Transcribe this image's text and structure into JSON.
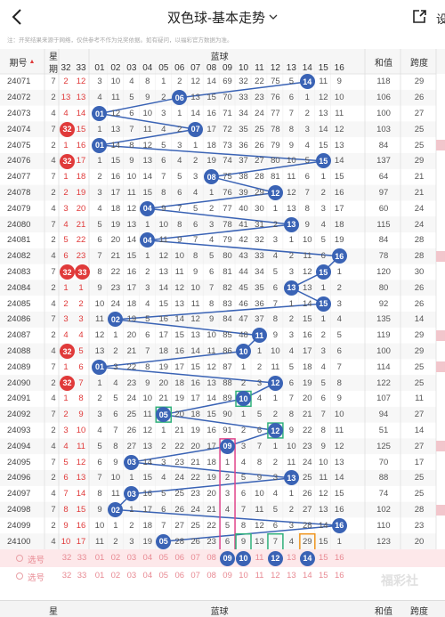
{
  "nav": {
    "title": "双色球-基本走势",
    "settings": "设"
  },
  "notice": "注：开奖结果来源于网络，仅供参考不作为兑奖依据。如有疑问，以福彩官方数据为准。",
  "header": {
    "period": "期号",
    "weekday_top": "星",
    "weekday_bottom": "期",
    "red_cols": [
      "32",
      "33"
    ],
    "blue_label": "蓝球",
    "blue_cols": [
      "01",
      "02",
      "03",
      "04",
      "05",
      "06",
      "07",
      "08",
      "09",
      "10",
      "11",
      "12",
      "13",
      "14",
      "15",
      "16"
    ],
    "sum": "和值",
    "span": "跨度"
  },
  "rows": [
    {
      "p": "24071",
      "w": "7",
      "a": "2",
      "b": "12",
      "ball": 14,
      "cells": [
        "3",
        "10",
        "4",
        "8",
        "1",
        "2",
        "12",
        "14",
        "69",
        "32",
        "22",
        "75",
        "5",
        "",
        "11",
        "9"
      ],
      "sum": "118",
      "span": "29"
    },
    {
      "p": "24072",
      "w": "2",
      "a": "13",
      "b": "13",
      "ball": 6,
      "cells": [
        "4",
        "11",
        "5",
        "9",
        "2",
        "",
        "13",
        "15",
        "70",
        "33",
        "23",
        "76",
        "6",
        "1",
        "12",
        "10"
      ],
      "sum": "106",
      "span": "26"
    },
    {
      "p": "24073",
      "w": "4",
      "a": "4",
      "b": "14",
      "ball": 1,
      "cells": [
        "",
        "12",
        "6",
        "10",
        "3",
        "1",
        "14",
        "16",
        "71",
        "34",
        "24",
        "77",
        "7",
        "2",
        "13",
        "11"
      ],
      "sum": "100",
      "span": "27"
    },
    {
      "p": "24074",
      "w": "7",
      "a": "r32",
      "b": "15",
      "ball": 7,
      "cells": [
        "1",
        "13",
        "7",
        "11",
        "4",
        "2",
        "",
        "17",
        "72",
        "35",
        "25",
        "78",
        "8",
        "3",
        "14",
        "12"
      ],
      "sum": "103",
      "span": "25"
    },
    {
      "p": "24075",
      "w": "2",
      "a": "1",
      "b": "16",
      "ball": 1,
      "cells": [
        "",
        "14",
        "8",
        "12",
        "5",
        "3",
        "1",
        "18",
        "73",
        "36",
        "26",
        "79",
        "9",
        "4",
        "15",
        "13"
      ],
      "sum": "84",
      "span": "25"
    },
    {
      "p": "24076",
      "w": "4",
      "a": "r32",
      "b": "17",
      "ball": 15,
      "cells": [
        "1",
        "15",
        "9",
        "13",
        "6",
        "4",
        "2",
        "19",
        "74",
        "37",
        "27",
        "80",
        "10",
        "5",
        "",
        "14"
      ],
      "sum": "137",
      "span": "29"
    },
    {
      "p": "24077",
      "w": "7",
      "a": "1",
      "b": "18",
      "ball": 8,
      "cells": [
        "2",
        "16",
        "10",
        "14",
        "7",
        "5",
        "3",
        "",
        "75",
        "38",
        "28",
        "81",
        "11",
        "6",
        "1",
        "15"
      ],
      "sum": "64",
      "span": "21"
    },
    {
      "p": "24078",
      "w": "2",
      "a": "2",
      "b": "19",
      "ball": 12,
      "cells": [
        "3",
        "17",
        "11",
        "15",
        "8",
        "6",
        "4",
        "1",
        "76",
        "39",
        "29",
        "",
        "12",
        "7",
        "2",
        "16"
      ],
      "sum": "97",
      "span": "21"
    },
    {
      "p": "24079",
      "w": "4",
      "a": "3",
      "b": "20",
      "ball": 4,
      "cells": [
        "4",
        "18",
        "12",
        "",
        "9",
        "7",
        "5",
        "2",
        "77",
        "40",
        "30",
        "1",
        "13",
        "8",
        "3",
        "17"
      ],
      "sum": "60",
      "span": "24"
    },
    {
      "p": "24080",
      "w": "7",
      "a": "4",
      "b": "21",
      "ball": 13,
      "cells": [
        "5",
        "19",
        "13",
        "1",
        "10",
        "8",
        "6",
        "3",
        "78",
        "41",
        "31",
        "2",
        "",
        "9",
        "4",
        "18"
      ],
      "sum": "115",
      "span": "24"
    },
    {
      "p": "24081",
      "w": "2",
      "a": "5",
      "b": "22",
      "ball": 4,
      "cells": [
        "6",
        "20",
        "14",
        "",
        "11",
        "9",
        "7",
        "4",
        "79",
        "42",
        "32",
        "3",
        "1",
        "10",
        "5",
        "19"
      ],
      "sum": "84",
      "span": "28"
    },
    {
      "p": "24082",
      "w": "4",
      "a": "6",
      "b": "23",
      "ball": 16,
      "cells": [
        "7",
        "21",
        "15",
        "1",
        "12",
        "10",
        "8",
        "5",
        "80",
        "43",
        "33",
        "4",
        "2",
        "11",
        "6",
        ""
      ],
      "sum": "78",
      "span": "28"
    },
    {
      "p": "24083",
      "w": "7",
      "a": "r32",
      "b": "r33",
      "ball": 15,
      "cells": [
        "8",
        "22",
        "16",
        "2",
        "13",
        "11",
        "9",
        "6",
        "81",
        "44",
        "34",
        "5",
        "3",
        "12",
        "",
        "1"
      ],
      "sum": "120",
      "span": "30"
    },
    {
      "p": "24084",
      "w": "2",
      "a": "1",
      "b": "1",
      "ball": 13,
      "cells": [
        "9",
        "23",
        "17",
        "3",
        "14",
        "12",
        "10",
        "7",
        "82",
        "45",
        "35",
        "6",
        "",
        "13",
        "1",
        "2"
      ],
      "sum": "80",
      "span": "26"
    },
    {
      "p": "24085",
      "w": "4",
      "a": "2",
      "b": "2",
      "ball": 15,
      "cells": [
        "10",
        "24",
        "18",
        "4",
        "15",
        "13",
        "11",
        "8",
        "83",
        "46",
        "36",
        "7",
        "1",
        "14",
        "",
        "3"
      ],
      "sum": "92",
      "span": "26"
    },
    {
      "p": "24086",
      "w": "7",
      "a": "3",
      "b": "3",
      "ball": 2,
      "cells": [
        "11",
        "",
        "19",
        "5",
        "16",
        "14",
        "12",
        "9",
        "84",
        "47",
        "37",
        "8",
        "2",
        "15",
        "1",
        "4"
      ],
      "sum": "135",
      "span": "14"
    },
    {
      "p": "24087",
      "w": "2",
      "a": "4",
      "b": "4",
      "ball": 11,
      "cells": [
        "12",
        "1",
        "20",
        "6",
        "17",
        "15",
        "13",
        "10",
        "85",
        "48",
        "",
        "9",
        "3",
        "16",
        "2",
        "5"
      ],
      "sum": "119",
      "span": "29"
    },
    {
      "p": "24088",
      "w": "4",
      "a": "r32",
      "b": "5",
      "ball": 10,
      "cells": [
        "13",
        "2",
        "21",
        "7",
        "18",
        "16",
        "14",
        "11",
        "86",
        "",
        "1",
        "10",
        "4",
        "17",
        "3",
        "6"
      ],
      "sum": "100",
      "span": "29"
    },
    {
      "p": "24089",
      "w": "7",
      "a": "1",
      "b": "6",
      "ball": 1,
      "cells": [
        "",
        "3",
        "22",
        "8",
        "19",
        "17",
        "15",
        "12",
        "87",
        "1",
        "2",
        "11",
        "5",
        "18",
        "4",
        "7"
      ],
      "sum": "114",
      "span": "25"
    },
    {
      "p": "24090",
      "w": "2",
      "a": "r32",
      "b": "7",
      "ball": 12,
      "cells": [
        "1",
        "4",
        "23",
        "9",
        "20",
        "18",
        "16",
        "13",
        "88",
        "2",
        "3",
        "",
        "6",
        "19",
        "5",
        "8"
      ],
      "sum": "122",
      "span": "25"
    },
    {
      "p": "24091",
      "w": "4",
      "a": "1",
      "b": "8",
      "ball": 10,
      "cells": [
        "2",
        "5",
        "24",
        "10",
        "21",
        "19",
        "17",
        "14",
        "89",
        "",
        "4",
        "1",
        "7",
        "20",
        "6",
        "9"
      ],
      "sum": "107",
      "span": "11"
    },
    {
      "p": "24092",
      "w": "7",
      "a": "2",
      "b": "9",
      "ball": 5,
      "cells": [
        "3",
        "6",
        "25",
        "11",
        "",
        "20",
        "18",
        "15",
        "90",
        "1",
        "5",
        "2",
        "8",
        "21",
        "7",
        "10"
      ],
      "sum": "94",
      "span": "27"
    },
    {
      "p": "24093",
      "w": "2",
      "a": "3",
      "b": "10",
      "ball": 12,
      "cells": [
        "4",
        "7",
        "26",
        "12",
        "1",
        "21",
        "19",
        "16",
        "91",
        "2",
        "6",
        "",
        "9",
        "22",
        "8",
        "11"
      ],
      "sum": "51",
      "span": "14"
    },
    {
      "p": "24094",
      "w": "4",
      "a": "4",
      "b": "11",
      "ball": 9,
      "cells": [
        "5",
        "8",
        "27",
        "13",
        "2",
        "22",
        "20",
        "17",
        "",
        "3",
        "7",
        "1",
        "10",
        "23",
        "9",
        "12"
      ],
      "sum": "125",
      "span": "27"
    },
    {
      "p": "24095",
      "w": "7",
      "a": "5",
      "b": "12",
      "ball": 3,
      "cells": [
        "6",
        "9",
        "",
        "14",
        "3",
        "23",
        "21",
        "18",
        "1",
        "4",
        "8",
        "2",
        "11",
        "24",
        "10",
        "13"
      ],
      "sum": "70",
      "span": "17"
    },
    {
      "p": "24096",
      "w": "2",
      "a": "6",
      "b": "13",
      "ball": 13,
      "cells": [
        "7",
        "10",
        "1",
        "15",
        "4",
        "24",
        "22",
        "19",
        "2",
        "5",
        "9",
        "3",
        "",
        "25",
        "11",
        "14"
      ],
      "sum": "88",
      "span": "25"
    },
    {
      "p": "24097",
      "w": "4",
      "a": "7",
      "b": "14",
      "ball": 3,
      "cells": [
        "8",
        "11",
        "",
        "16",
        "5",
        "25",
        "23",
        "20",
        "3",
        "6",
        "10",
        "4",
        "1",
        "26",
        "12",
        "15"
      ],
      "sum": "74",
      "span": "25"
    },
    {
      "p": "24098",
      "w": "7",
      "a": "8",
      "b": "15",
      "ball": 2,
      "cells": [
        "9",
        "",
        "1",
        "17",
        "6",
        "26",
        "24",
        "21",
        "4",
        "7",
        "11",
        "5",
        "2",
        "27",
        "13",
        "16"
      ],
      "sum": "102",
      "span": "28"
    },
    {
      "p": "24099",
      "w": "2",
      "a": "9",
      "b": "16",
      "ball": 16,
      "cells": [
        "10",
        "1",
        "2",
        "18",
        "7",
        "27",
        "25",
        "22",
        "5",
        "8",
        "12",
        "6",
        "3",
        "28",
        "14",
        ""
      ],
      "sum": "110",
      "span": "23"
    },
    {
      "p": "24100",
      "w": "4",
      "a": "10",
      "b": "17",
      "ball": 5,
      "cells": [
        "11",
        "2",
        "3",
        "19",
        "",
        "28",
        "26",
        "23",
        "6",
        "9",
        "13",
        "7",
        "4",
        "29",
        "15",
        "1"
      ],
      "sum": "123",
      "span": "20"
    }
  ],
  "footer": {
    "pick_label": "选号",
    "last_nums": [
      "32",
      "33",
      "01",
      "02",
      "03",
      "04",
      "05",
      "06",
      "07",
      "08",
      "09",
      "10",
      "11",
      "12",
      "13",
      "14",
      "15",
      "16"
    ],
    "highlight": {
      "09": "09",
      "10": "10",
      "12": "12",
      "14": "14"
    },
    "watermark": "福彩社"
  },
  "colors": {
    "blue_ball": "#3a63b5",
    "red_ball": "#e03a3a",
    "pink_box": "#e0448a",
    "green_box": "#2fb07a",
    "orange_box": "#f0951e"
  }
}
